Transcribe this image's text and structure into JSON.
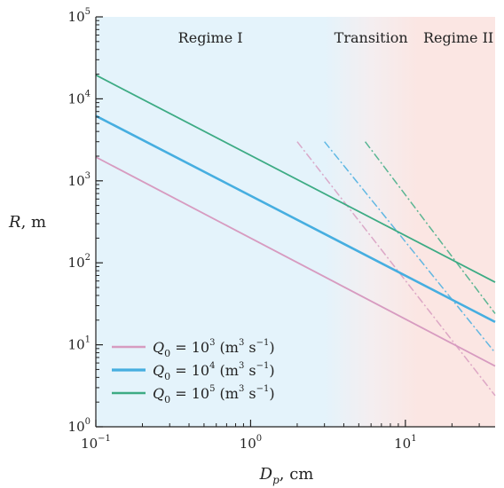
{
  "chart_data": {
    "type": "line",
    "xlabel": {
      "symbol": "D",
      "subscript": "p",
      "unit": ", cm"
    },
    "ylabel": {
      "symbol": "R",
      "unit": ", m"
    },
    "x_scale": "log",
    "y_scale": "log",
    "xlim": [
      0.1,
      38
    ],
    "ylim": [
      1,
      100000
    ],
    "x_ticks": [
      {
        "base": "10",
        "exp": "−1",
        "value": 0.1
      },
      {
        "base": "10",
        "exp": "0",
        "value": 1
      },
      {
        "base": "10",
        "exp": "1",
        "value": 10
      }
    ],
    "y_ticks": [
      {
        "base": "10",
        "exp": "0",
        "value": 1
      },
      {
        "base": "10",
        "exp": "1",
        "value": 10
      },
      {
        "base": "10",
        "exp": "2",
        "value": 100
      },
      {
        "base": "10",
        "exp": "3",
        "value": 1000
      },
      {
        "base": "10",
        "exp": "4",
        "value": 10000
      },
      {
        "base": "10",
        "exp": "5",
        "value": 100000
      }
    ],
    "regions": [
      {
        "label": "Regime I",
        "x_start": 0.1,
        "x_end": 3,
        "label_x": 0.55,
        "color": "#e4f3fb"
      },
      {
        "label": "Transition",
        "x_start": 3,
        "x_end": 12,
        "label_x": 6,
        "color": "#f4eef0"
      },
      {
        "label": "Regime II",
        "x_start": 12,
        "x_end": 38,
        "label_x": 22,
        "color": "#fbe6e3"
      }
    ],
    "series": [
      {
        "q_text": "3",
        "color": "#d79bc0",
        "regime1": {
          "x": [
            0.1,
            38
          ],
          "y": [
            1950,
            5.5
          ]
        },
        "regime2": {
          "x": [
            2.0,
            38
          ],
          "y": [
            3000,
            2.4
          ]
        }
      },
      {
        "q_text": "4",
        "color": "#46aee0",
        "regime1": {
          "x": [
            0.1,
            38
          ],
          "y": [
            6200,
            19
          ]
        },
        "regime2": {
          "x": [
            3.0,
            38
          ],
          "y": [
            3000,
            8
          ]
        }
      },
      {
        "q_text": "5",
        "color": "#3dab84",
        "regime1": {
          "x": [
            0.1,
            38
          ],
          "y": [
            19500,
            58
          ]
        },
        "regime2": {
          "x": [
            5.5,
            38
          ],
          "y": [
            3000,
            24
          ]
        }
      }
    ],
    "legend": {
      "placement": "bottom-left",
      "entry_prefix": "Q",
      "entry_subscript": "0",
      "entry_equals": " = 10",
      "entry_units": " (m",
      "entry_units_exp": "3",
      "entry_units_mid": " s",
      "entry_units_exp2": "−1",
      "entry_units_end": ")"
    }
  }
}
